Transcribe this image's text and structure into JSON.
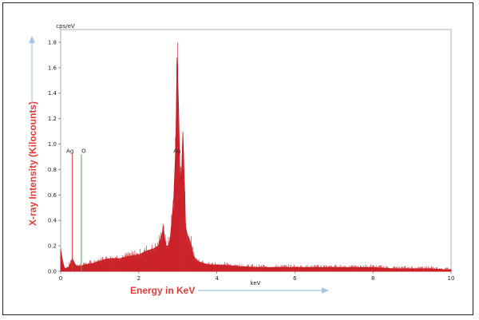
{
  "chart_data": {
    "type": "line",
    "unit_label": "cps/eV",
    "xlabel_inner": "keV",
    "ylabel": "X-ray Intensity (Kilocounts)",
    "xlabel": "Energy in KeV",
    "xlim": [
      0,
      10
    ],
    "ylim": [
      0,
      1.9
    ],
    "x_ticks": [
      "0",
      "2",
      "4",
      "6",
      "8",
      "10"
    ],
    "x_tick_values": [
      0,
      2,
      4,
      6,
      8,
      10
    ],
    "y_ticks": [
      "0.0",
      "0.2",
      "0.4",
      "0.6",
      "0.8",
      "1.0",
      "1.2",
      "1.4",
      "1.6",
      "1.8"
    ],
    "y_tick_values": [
      0,
      0.2,
      0.4,
      0.6,
      0.8,
      1.0,
      1.2,
      1.4,
      1.6,
      1.8
    ],
    "series": [
      {
        "x": [
          0.0,
          0.05,
          0.1,
          0.2,
          0.25,
          0.3,
          0.33,
          0.36,
          0.4,
          0.5,
          0.6,
          0.8,
          1.0,
          1.2,
          1.5,
          1.8,
          2.0,
          2.2,
          2.4,
          2.5,
          2.55,
          2.6,
          2.63,
          2.66,
          2.7,
          2.75,
          2.8,
          2.85,
          2.9,
          2.95,
          2.98,
          3.0,
          3.02,
          3.05,
          3.08,
          3.1,
          3.13,
          3.15,
          3.18,
          3.2,
          3.25,
          3.3,
          3.35,
          3.4,
          3.5,
          3.6,
          3.8,
          4.0,
          4.5,
          5.0,
          5.5,
          6.0,
          6.5,
          7.0,
          7.5,
          8.0,
          8.5,
          9.0,
          9.5,
          10.0
        ],
        "y": [
          0.17,
          0.08,
          0.02,
          0.03,
          0.06,
          0.1,
          0.08,
          0.06,
          0.04,
          0.04,
          0.05,
          0.06,
          0.08,
          0.1,
          0.1,
          0.12,
          0.13,
          0.16,
          0.18,
          0.2,
          0.25,
          0.3,
          0.36,
          0.26,
          0.2,
          0.2,
          0.25,
          0.4,
          0.6,
          1.0,
          1.68,
          1.5,
          1.3,
          0.85,
          0.7,
          0.8,
          1.1,
          0.9,
          0.6,
          0.35,
          0.28,
          0.25,
          0.2,
          0.12,
          0.08,
          0.07,
          0.05,
          0.05,
          0.04,
          0.03,
          0.03,
          0.03,
          0.03,
          0.03,
          0.03,
          0.03,
          0.02,
          0.02,
          0.02,
          0.01
        ]
      }
    ],
    "annotations": [
      {
        "label": "Ag",
        "x": 0.3,
        "y_top": 0.92,
        "color": "#d03a3a"
      },
      {
        "label": "O",
        "x": 0.53,
        "y_top": 0.92,
        "color": "#4caf50"
      },
      {
        "label": "Ag",
        "x": 2.98,
        "y_top": 0.92,
        "color": "#d03a3a"
      }
    ]
  },
  "colors": {
    "spectrum": "#c8161d",
    "axis_title": "#e53935",
    "arrow": "#a9c4e8"
  }
}
